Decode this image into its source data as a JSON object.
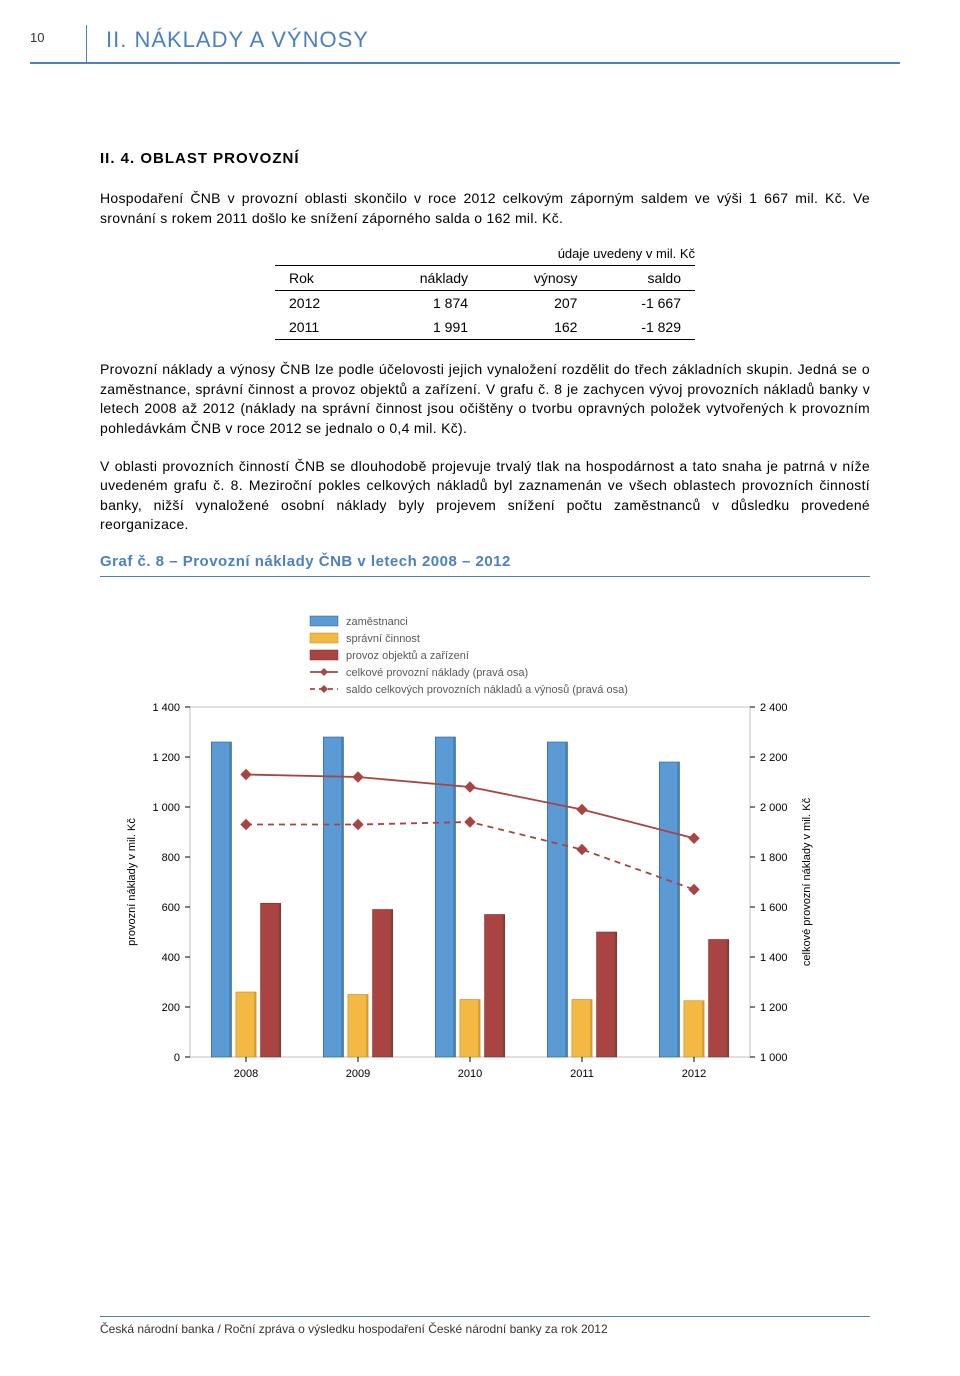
{
  "header": {
    "page_number": "10",
    "section_title": "II. NÁKLADY A VÝNOSY"
  },
  "subheading": "II. 4. OBLAST PROVOZNÍ",
  "paragraphs": {
    "p1": "Hospodaření ČNB v provozní oblasti skončilo v roce 2012 celkovým záporným saldem ve výši 1 667 mil. Kč. Ve srovnání s rokem 2011 došlo ke snížení záporného salda o 162 mil. Kč.",
    "p2": "Provozní náklady a výnosy ČNB lze podle účelovosti jejich vynaložení rozdělit do třech základních skupin. Jedná se o zaměstnance, správní činnost a provoz objektů a zařízení. V grafu č. 8 je zachycen vývoj provozních nákladů banky v letech 2008 až 2012 (náklady na správní činnost jsou očištěny o tvorbu opravných položek vytvořených k provozním pohledávkám ČNB v roce 2012 se jednalo o 0,4 mil. Kč).",
    "p3": "V oblasti provozních činností ČNB se dlouhodobě projevuje trvalý tlak na hospodárnost a tato snaha je patrná v níže uvedeném grafu č. 8. Meziroční pokles celkových nákladů byl zaznamenán ve všech oblastech provozních činností banky, nižší vynaložené osobní náklady byly projevem snížení počtu zaměstnanců v důsledku provedené reorganizace."
  },
  "table": {
    "caption": "údaje uvedeny v mil. Kč",
    "columns": [
      "Rok",
      "náklady",
      "výnosy",
      "saldo"
    ],
    "rows": [
      [
        "2012",
        "1 874",
        "207",
        "-1 667"
      ],
      [
        "2011",
        "1 991",
        "162",
        "-1 829"
      ]
    ]
  },
  "chart": {
    "title": "Graf č. 8 – Provozní náklady ČNB v letech 2008 – 2012",
    "type": "grouped-bar-dual-axis",
    "categories": [
      "2008",
      "2009",
      "2010",
      "2011",
      "2012"
    ],
    "left_axis": {
      "label": "provozní náklady v mil. Kč",
      "min": 0,
      "max": 1400,
      "step": 200,
      "ticks": [
        "0",
        "200",
        "400",
        "600",
        "800",
        "1 000",
        "1 200",
        "1 400"
      ]
    },
    "right_axis": {
      "label": "celkové provozní náklady v mil. Kč",
      "min": 1000,
      "max": 2400,
      "step": 200,
      "ticks": [
        "1 000",
        "1 200",
        "1 400",
        "1 600",
        "1 800",
        "2 000",
        "2 200",
        "2 400"
      ]
    },
    "series": {
      "zamestnanci": {
        "label": "zaměstnanci",
        "color": "#5b9bd5",
        "border": "#2e5d8c",
        "values": [
          1260,
          1280,
          1280,
          1260,
          1180
        ]
      },
      "spravni_cinnost": {
        "label": "správní činnost",
        "color": "#f4b942",
        "border": "#c68a1e",
        "values": [
          260,
          250,
          230,
          230,
          225
        ]
      },
      "provoz_objektu": {
        "label": "provoz objektů a zařízení",
        "color": "#a94442",
        "border": "#7a2f2d",
        "values": [
          615,
          590,
          570,
          500,
          470
        ]
      },
      "celkove": {
        "label": "celkové provozní náklady (pravá osa)",
        "color": "#a94442",
        "values": [
          2130,
          2120,
          2080,
          1990,
          1875
        ],
        "style": "line-solid-diamond"
      },
      "saldo": {
        "label": "saldo celkových provozních nákladů a výnosů (pravá osa)",
        "color": "#a94442",
        "values": [
          1930,
          1930,
          1940,
          1830,
          1670
        ],
        "style": "line-dashed-diamond"
      }
    },
    "legend_order": [
      "zamestnanci",
      "spravni_cinnost",
      "provoz_objektu",
      "celkove",
      "saldo"
    ],
    "background_color": "#ffffff",
    "plot_border_color": "#bfbfbf",
    "tick_font_size": 11,
    "legend_font_size": 11,
    "axis_label_font_size": 11,
    "bar_group_width": 0.62,
    "bar_gap": 0.04
  },
  "footer": "Česká národní banka / Roční zpráva o výsledku hospodaření České národní banky za rok 2012"
}
